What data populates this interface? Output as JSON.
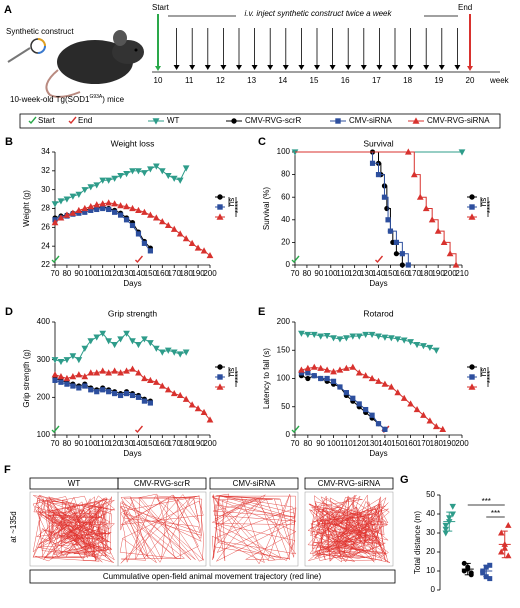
{
  "panel_a": {
    "panel": "A",
    "construct_label": "Synthetic construct",
    "mice_label": "10-week-old Tg(SOD1",
    "mice_sup": "G93A",
    "mice_end": ") mice",
    "start_label": "Start",
    "end_label": "End",
    "injection_label": "i.v. inject synthetic construct twice a week",
    "weeks": [
      10,
      11,
      12,
      13,
      14,
      15,
      16,
      17,
      18,
      19,
      20
    ],
    "week_label": "week"
  },
  "panel_f": {
    "panel": "F",
    "side_label": "at ~135d",
    "groups": [
      "WT",
      "CMV-RVG-scrR",
      "CMV-siRNA",
      "CMV-RVG-siRNA"
    ],
    "caption": "Cummulative open-field animal movement trajectory (red line)"
  },
  "chart_data": [
    {
      "type": "line",
      "panel": "B",
      "title": "Weight loss",
      "x_label": "Days",
      "y_label": "Weight (g)",
      "xlim": [
        70,
        200
      ],
      "xticks": [
        70,
        80,
        90,
        100,
        110,
        120,
        130,
        140,
        150,
        160,
        170,
        180,
        190,
        200
      ],
      "ylim": [
        22,
        34
      ],
      "yticks": [
        22,
        24,
        26,
        28,
        30,
        32,
        34
      ],
      "start_day": 70,
      "end_day": 140,
      "annotations": [
        "ns",
        "****"
      ],
      "series": [
        {
          "name": "WT",
          "color": "#2e9c8a",
          "marker": "tri-down",
          "x": [
            70,
            75,
            80,
            85,
            90,
            95,
            100,
            105,
            110,
            115,
            120,
            125,
            130,
            135,
            140,
            145,
            150,
            155,
            160,
            165,
            170,
            175,
            180
          ],
          "values": [
            28.5,
            28.8,
            29,
            29.3,
            29.5,
            30,
            30.3,
            30.5,
            31,
            31,
            31.2,
            31.5,
            31.7,
            32,
            32,
            31.8,
            32.2,
            32.5,
            32,
            31.5,
            31.2,
            31,
            32.3
          ]
        },
        {
          "name": "CMV-RVG-scrR",
          "color": "#000000",
          "marker": "circle",
          "x": [
            70,
            75,
            80,
            85,
            90,
            95,
            100,
            105,
            110,
            115,
            120,
            125,
            130,
            135,
            140,
            145,
            150
          ],
          "values": [
            27,
            27.2,
            27.3,
            27.5,
            27.6,
            27.8,
            28,
            28,
            28.2,
            28,
            27.8,
            27.5,
            27,
            26.5,
            25.5,
            24.5,
            23.8
          ]
        },
        {
          "name": "CMV-siRNA",
          "color": "#2d4f9e",
          "marker": "square",
          "x": [
            70,
            75,
            80,
            85,
            90,
            95,
            100,
            105,
            110,
            115,
            120,
            125,
            130,
            135,
            140,
            145,
            150
          ],
          "values": [
            26.8,
            27,
            27.2,
            27.4,
            27.5,
            27.6,
            27.8,
            27.9,
            28,
            27.9,
            27.6,
            27.3,
            26.8,
            26.2,
            25.3,
            24.3,
            23.5
          ]
        },
        {
          "name": "CMV-RVG-siRNA",
          "color": "#d8322e",
          "marker": "tri-up",
          "x": [
            70,
            75,
            80,
            85,
            90,
            95,
            100,
            105,
            110,
            115,
            120,
            125,
            130,
            135,
            140,
            145,
            150,
            155,
            160,
            165,
            170,
            175,
            180,
            185,
            190,
            195,
            200
          ],
          "values": [
            26.5,
            27,
            27.3,
            27.5,
            27.8,
            28,
            28.2,
            28.4,
            28.5,
            28.6,
            28.5,
            28.3,
            28.2,
            28,
            27.8,
            27.6,
            27.3,
            27,
            26.6,
            26.2,
            25.8,
            25.3,
            24.8,
            24.3,
            23.8,
            23.5,
            23
          ]
        }
      ]
    },
    {
      "type": "line",
      "step": true,
      "panel": "C",
      "title": "Survival",
      "x_label": "Days",
      "y_label": "Survival (%)",
      "xlim": [
        70,
        210
      ],
      "xticks": [
        70,
        80,
        90,
        100,
        110,
        120,
        130,
        140,
        150,
        160,
        170,
        180,
        190,
        200,
        210
      ],
      "ylim": [
        0,
        100
      ],
      "yticks": [
        0,
        20,
        40,
        60,
        80,
        100
      ],
      "start_day": 70,
      "end_day": 140,
      "annotations": [
        "ns",
        "****"
      ],
      "series": [
        {
          "name": "WT",
          "color": "#2e9c8a",
          "marker": "tri-down",
          "x": [
            70,
            210
          ],
          "values": [
            100,
            100
          ]
        },
        {
          "name": "CMV-RVG-scrR",
          "color": "#000000",
          "marker": "circle",
          "x": [
            70,
            135,
            140,
            142,
            145,
            147,
            150,
            152,
            155,
            160
          ],
          "values": [
            100,
            100,
            90,
            80,
            70,
            50,
            30,
            20,
            10,
            0
          ]
        },
        {
          "name": "CMV-siRNA",
          "color": "#2d4f9e",
          "marker": "square",
          "x": [
            70,
            135,
            140,
            145,
            148,
            150,
            155,
            160,
            165
          ],
          "values": [
            100,
            90,
            80,
            60,
            40,
            30,
            20,
            10,
            0
          ]
        },
        {
          "name": "CMV-RVG-siRNA",
          "color": "#d8322e",
          "marker": "tri-up",
          "x": [
            70,
            165,
            170,
            175,
            180,
            185,
            190,
            195,
            200,
            205
          ],
          "values": [
            100,
            100,
            80,
            60,
            50,
            40,
            30,
            20,
            10,
            0
          ]
        }
      ]
    },
    {
      "type": "line",
      "panel": "D",
      "title": "Grip strength",
      "x_label": "Days",
      "y_label": "Grip strength (g)",
      "xlim": [
        70,
        200
      ],
      "xticks": [
        70,
        80,
        90,
        100,
        110,
        120,
        130,
        140,
        150,
        160,
        170,
        180,
        190,
        200
      ],
      "ylim": [
        100,
        400
      ],
      "yticks": [
        100,
        200,
        300,
        400
      ],
      "start_day": 70,
      "end_day": 140,
      "annotations": [
        "ns",
        "****"
      ],
      "series": [
        {
          "name": "WT",
          "color": "#2e9c8a",
          "marker": "tri-down",
          "x": [
            70,
            75,
            80,
            85,
            90,
            95,
            100,
            105,
            110,
            115,
            120,
            125,
            130,
            135,
            140,
            145,
            150,
            155,
            160,
            165,
            170,
            175,
            180
          ],
          "values": [
            300,
            295,
            300,
            310,
            300,
            330,
            350,
            360,
            370,
            350,
            340,
            355,
            370,
            350,
            340,
            355,
            345,
            330,
            320,
            325,
            320,
            315,
            320
          ]
        },
        {
          "name": "CMV-RVG-scrR",
          "color": "#000000",
          "marker": "circle",
          "x": [
            70,
            75,
            80,
            85,
            90,
            95,
            100,
            105,
            110,
            115,
            120,
            125,
            130,
            135,
            140,
            145,
            150
          ],
          "values": [
            250,
            245,
            240,
            235,
            230,
            235,
            225,
            220,
            225,
            220,
            215,
            210,
            215,
            210,
            205,
            195,
            190
          ]
        },
        {
          "name": "CMV-siRNA",
          "color": "#2d4f9e",
          "marker": "square",
          "x": [
            70,
            75,
            80,
            85,
            90,
            95,
            100,
            105,
            110,
            115,
            120,
            125,
            130,
            135,
            140,
            145,
            150
          ],
          "values": [
            245,
            240,
            235,
            230,
            225,
            230,
            220,
            215,
            220,
            215,
            210,
            205,
            210,
            205,
            200,
            190,
            185
          ]
        },
        {
          "name": "CMV-RVG-siRNA",
          "color": "#d8322e",
          "marker": "tri-up",
          "x": [
            70,
            75,
            80,
            85,
            90,
            95,
            100,
            105,
            110,
            115,
            120,
            125,
            130,
            135,
            140,
            145,
            150,
            155,
            160,
            165,
            170,
            175,
            180,
            185,
            190,
            195,
            200
          ],
          "values": [
            260,
            255,
            250,
            255,
            260,
            255,
            265,
            265,
            270,
            265,
            270,
            265,
            270,
            275,
            265,
            250,
            245,
            240,
            230,
            220,
            210,
            205,
            195,
            180,
            170,
            160,
            140
          ]
        }
      ]
    },
    {
      "type": "line",
      "panel": "E",
      "title": "Rotarod",
      "x_label": "Days",
      "y_label": "Latency to fall (s)",
      "xlim": [
        70,
        200
      ],
      "xticks": [
        70,
        80,
        90,
        100,
        110,
        120,
        130,
        140,
        150,
        160,
        170,
        180,
        190,
        200
      ],
      "ylim": [
        0,
        200
      ],
      "yticks": [
        0,
        50,
        100,
        150,
        200
      ],
      "start_day": 70,
      "end_day": 140,
      "annotations": [
        "ns",
        "****"
      ],
      "series": [
        {
          "name": "WT",
          "color": "#2e9c8a",
          "marker": "tri-down",
          "x": [
            75,
            80,
            85,
            90,
            95,
            100,
            105,
            110,
            115,
            120,
            125,
            130,
            135,
            140,
            145,
            150,
            155,
            160,
            165,
            170,
            175,
            180
          ],
          "values": [
            180,
            178,
            178,
            175,
            176,
            172,
            170,
            172,
            175,
            175,
            178,
            178,
            175,
            173,
            172,
            170,
            168,
            165,
            160,
            158,
            155,
            150
          ]
        },
        {
          "name": "CMV-RVG-scrR",
          "color": "#000000",
          "marker": "circle",
          "x": [
            75,
            80,
            85,
            90,
            95,
            100,
            105,
            110,
            115,
            120,
            125,
            130,
            135,
            140
          ],
          "values": [
            105,
            100,
            105,
            100,
            95,
            90,
            85,
            70,
            60,
            50,
            40,
            30,
            20,
            10
          ]
        },
        {
          "name": "CMV-siRNA",
          "color": "#2d4f9e",
          "marker": "square",
          "x": [
            75,
            80,
            85,
            90,
            95,
            100,
            105,
            110,
            115,
            120,
            125,
            130,
            135,
            140
          ],
          "values": [
            110,
            110,
            105,
            100,
            100,
            95,
            85,
            75,
            65,
            55,
            45,
            35,
            20,
            10
          ]
        },
        {
          "name": "CMV-RVG-siRNA",
          "color": "#d8322e",
          "marker": "tri-up",
          "x": [
            75,
            80,
            85,
            90,
            95,
            100,
            105,
            110,
            115,
            120,
            125,
            130,
            135,
            140,
            145,
            150,
            155,
            160,
            165,
            170,
            175,
            180,
            185
          ],
          "values": [
            115,
            118,
            120,
            118,
            115,
            112,
            115,
            118,
            120,
            110,
            105,
            100,
            95,
            90,
            85,
            75,
            65,
            55,
            45,
            35,
            25,
            15,
            10
          ]
        }
      ]
    },
    {
      "type": "dot",
      "panel": "G",
      "y_label": "Total distance (m)",
      "ylim": [
        0,
        50
      ],
      "yticks": [
        0,
        10,
        20,
        30,
        40,
        50
      ],
      "annotations": [
        "***",
        "***"
      ],
      "series": [
        {
          "name": "WT",
          "color": "#2e9c8a",
          "marker": "tri-down",
          "values": [
            34,
            38,
            40,
            32,
            36,
            44,
            30
          ],
          "mean": 36,
          "sd": 5
        },
        {
          "name": "CMV-RVG-scrR",
          "color": "#000000",
          "marker": "circle",
          "values": [
            10,
            12,
            8,
            14,
            11,
            9
          ],
          "mean": 11,
          "sd": 3
        },
        {
          "name": "CMV-siRNA",
          "color": "#2d4f9e",
          "marker": "square",
          "values": [
            9,
            12,
            6,
            10,
            7,
            13
          ],
          "mean": 10,
          "sd": 3
        },
        {
          "name": "CMV-RVG-siRNA",
          "color": "#d8322e",
          "marker": "tri-up",
          "values": [
            20,
            22,
            18,
            30,
            24,
            34
          ],
          "mean": 24,
          "sd": 7
        }
      ]
    }
  ]
}
